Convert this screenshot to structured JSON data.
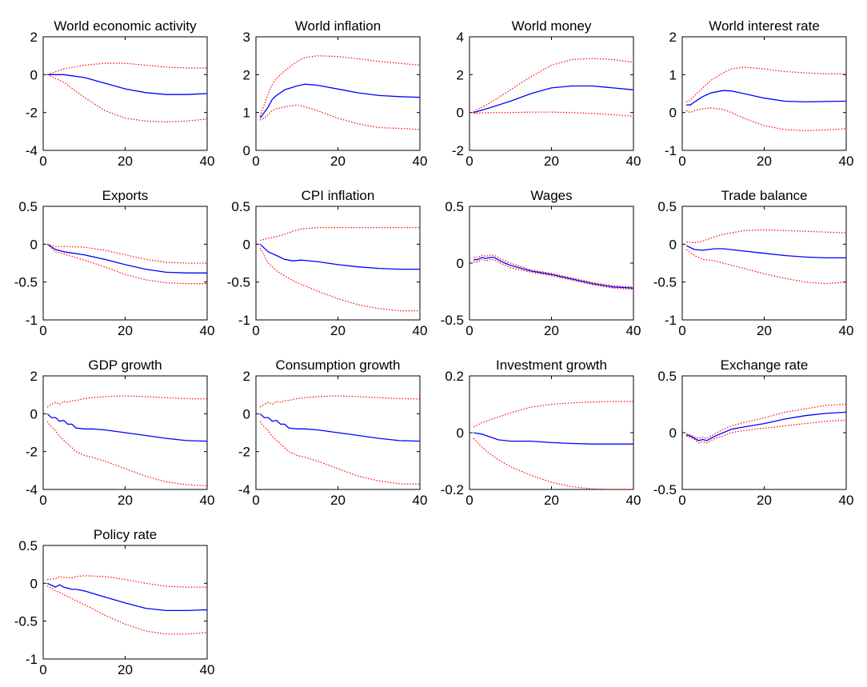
{
  "figure": {
    "colors": {
      "median": "#0000ff",
      "band": "#ff0000",
      "axis": "#000000",
      "background": "#ffffff"
    },
    "x_ticks": [
      0,
      20,
      40
    ],
    "xlim": [
      0,
      40
    ]
  },
  "chart_data": [
    {
      "type": "line",
      "title": "World economic activity",
      "ylim": [
        -4,
        2
      ],
      "yticks": [
        -4,
        -2,
        0,
        2
      ],
      "xlabel": "",
      "ylabel": "",
      "grid": false,
      "x": [
        1,
        5,
        10,
        15,
        20,
        25,
        30,
        35,
        40
      ],
      "series": [
        {
          "role": "median",
          "style": "solid",
          "values": [
            0,
            0,
            -0.15,
            -0.45,
            -0.75,
            -0.95,
            -1.05,
            -1.05,
            -1.0
          ]
        },
        {
          "role": "upper",
          "style": "dotted",
          "values": [
            0,
            0.3,
            0.5,
            0.6,
            0.6,
            0.5,
            0.4,
            0.35,
            0.35
          ]
        },
        {
          "role": "lower",
          "style": "dotted",
          "values": [
            0,
            -0.4,
            -1.2,
            -1.9,
            -2.3,
            -2.45,
            -2.5,
            -2.45,
            -2.35
          ]
        }
      ]
    },
    {
      "type": "line",
      "title": "World inflation",
      "ylim": [
        0,
        3
      ],
      "yticks": [
        0,
        1,
        2,
        3
      ],
      "xlabel": "",
      "ylabel": "",
      "grid": false,
      "x": [
        1,
        2,
        3,
        4,
        5,
        7,
        10,
        12,
        15,
        20,
        25,
        30,
        35,
        40
      ],
      "series": [
        {
          "role": "median",
          "style": "solid",
          "values": [
            0.85,
            1.0,
            1.15,
            1.35,
            1.45,
            1.6,
            1.7,
            1.75,
            1.72,
            1.62,
            1.52,
            1.45,
            1.42,
            1.4
          ]
        },
        {
          "role": "upper",
          "style": "dotted",
          "values": [
            0.9,
            1.2,
            1.5,
            1.75,
            1.9,
            2.1,
            2.35,
            2.45,
            2.5,
            2.48,
            2.42,
            2.35,
            2.3,
            2.25
          ]
        },
        {
          "role": "lower",
          "style": "dotted",
          "values": [
            0.8,
            0.85,
            0.95,
            1.05,
            1.1,
            1.15,
            1.2,
            1.15,
            1.05,
            0.85,
            0.7,
            0.6,
            0.58,
            0.55
          ]
        }
      ]
    },
    {
      "type": "line",
      "title": "World money",
      "ylim": [
        -2,
        4
      ],
      "yticks": [
        -2,
        0,
        2,
        4
      ],
      "xlabel": "",
      "ylabel": "",
      "grid": false,
      "x": [
        1,
        5,
        10,
        15,
        20,
        25,
        30,
        35,
        40
      ],
      "series": [
        {
          "role": "median",
          "style": "solid",
          "values": [
            0,
            0.25,
            0.6,
            1.0,
            1.3,
            1.4,
            1.4,
            1.3,
            1.2
          ]
        },
        {
          "role": "upper",
          "style": "dotted",
          "values": [
            0.05,
            0.5,
            1.2,
            1.9,
            2.5,
            2.8,
            2.85,
            2.8,
            2.65
          ]
        },
        {
          "role": "lower",
          "style": "dotted",
          "values": [
            -0.05,
            0,
            0,
            0.02,
            0.02,
            0,
            -0.05,
            -0.12,
            -0.2
          ]
        }
      ]
    },
    {
      "type": "line",
      "title": "World interest rate",
      "ylim": [
        -1,
        2
      ],
      "yticks": [
        -1,
        0,
        1,
        2
      ],
      "xlabel": "",
      "ylabel": "",
      "grid": false,
      "x": [
        1,
        2,
        3,
        5,
        7,
        10,
        12,
        15,
        20,
        25,
        30,
        35,
        40
      ],
      "series": [
        {
          "role": "median",
          "style": "solid",
          "values": [
            0.2,
            0.2,
            0.28,
            0.42,
            0.52,
            0.58,
            0.57,
            0.5,
            0.38,
            0.3,
            0.28,
            0.29,
            0.3
          ]
        },
        {
          "role": "upper",
          "style": "dotted",
          "values": [
            0.28,
            0.32,
            0.45,
            0.65,
            0.85,
            1.05,
            1.15,
            1.2,
            1.15,
            1.08,
            1.05,
            1.02,
            1.02
          ]
        },
        {
          "role": "lower",
          "style": "dotted",
          "values": [
            0.05,
            0.0,
            0.05,
            0.1,
            0.12,
            0.08,
            0.0,
            -0.15,
            -0.35,
            -0.45,
            -0.48,
            -0.46,
            -0.43
          ]
        }
      ]
    },
    {
      "type": "line",
      "title": "Exports",
      "ylim": [
        -1,
        0.5
      ],
      "yticks": [
        -1,
        -0.5,
        0,
        0.5
      ],
      "xlabel": "",
      "ylabel": "",
      "grid": false,
      "x": [
        1,
        3,
        5,
        10,
        15,
        20,
        25,
        30,
        35,
        40
      ],
      "series": [
        {
          "role": "median",
          "style": "solid",
          "values": [
            0,
            -0.07,
            -0.1,
            -0.14,
            -0.2,
            -0.27,
            -0.33,
            -0.37,
            -0.38,
            -0.38
          ]
        },
        {
          "role": "upper",
          "style": "dotted",
          "values": [
            0,
            -0.03,
            -0.03,
            -0.04,
            -0.08,
            -0.14,
            -0.2,
            -0.24,
            -0.25,
            -0.25
          ]
        },
        {
          "role": "lower",
          "style": "dotted",
          "values": [
            0,
            -0.1,
            -0.13,
            -0.21,
            -0.3,
            -0.4,
            -0.47,
            -0.51,
            -0.52,
            -0.52
          ]
        }
      ]
    },
    {
      "type": "line",
      "title": "CPI inflation",
      "ylim": [
        -1,
        0.5
      ],
      "yticks": [
        -1,
        -0.5,
        0,
        0.5
      ],
      "xlabel": "",
      "ylabel": "",
      "grid": false,
      "x": [
        1,
        3,
        5,
        7,
        9,
        11,
        15,
        20,
        25,
        30,
        35,
        40
      ],
      "series": [
        {
          "role": "median",
          "style": "solid",
          "values": [
            0,
            -0.1,
            -0.15,
            -0.2,
            -0.22,
            -0.21,
            -0.23,
            -0.27,
            -0.3,
            -0.32,
            -0.33,
            -0.33
          ]
        },
        {
          "role": "upper",
          "style": "dotted",
          "values": [
            0.05,
            0.08,
            0.1,
            0.13,
            0.17,
            0.2,
            0.22,
            0.22,
            0.22,
            0.22,
            0.22,
            0.22
          ]
        },
        {
          "role": "lower",
          "style": "dotted",
          "values": [
            -0.05,
            -0.25,
            -0.35,
            -0.42,
            -0.48,
            -0.53,
            -0.62,
            -0.72,
            -0.8,
            -0.85,
            -0.88,
            -0.88
          ]
        }
      ]
    },
    {
      "type": "line",
      "title": "Wages",
      "ylim": [
        -0.5,
        0.5
      ],
      "yticks": [
        -0.5,
        0,
        0.5
      ],
      "xlabel": "",
      "ylabel": "",
      "grid": false,
      "x": [
        1,
        2,
        3,
        4,
        5,
        6,
        7,
        8,
        10,
        15,
        20,
        25,
        30,
        35,
        40
      ],
      "series": [
        {
          "role": "median",
          "style": "solid",
          "values": [
            0.03,
            0.03,
            0.05,
            0.04,
            0.05,
            0.05,
            0.03,
            0.01,
            -0.02,
            -0.07,
            -0.1,
            -0.14,
            -0.18,
            -0.21,
            -0.22
          ]
        },
        {
          "role": "upper",
          "style": "dotted",
          "values": [
            0.05,
            0.05,
            0.07,
            0.06,
            0.07,
            0.07,
            0.05,
            0.03,
            0.0,
            -0.06,
            -0.09,
            -0.13,
            -0.17,
            -0.2,
            -0.21
          ]
        },
        {
          "role": "lower",
          "style": "dotted",
          "values": [
            0.01,
            0.01,
            0.03,
            0.02,
            0.03,
            0.03,
            0.01,
            -0.01,
            -0.04,
            -0.08,
            -0.11,
            -0.15,
            -0.19,
            -0.22,
            -0.23
          ]
        }
      ]
    },
    {
      "type": "line",
      "title": "Trade balance",
      "ylim": [
        -1,
        0.5
      ],
      "yticks": [
        -1,
        -0.5,
        0,
        0.5
      ],
      "xlabel": "",
      "ylabel": "",
      "grid": false,
      "x": [
        1,
        3,
        5,
        8,
        10,
        15,
        20,
        25,
        30,
        35,
        40
      ],
      "series": [
        {
          "role": "median",
          "style": "solid",
          "values": [
            -0.02,
            -0.07,
            -0.08,
            -0.06,
            -0.06,
            -0.09,
            -0.12,
            -0.15,
            -0.17,
            -0.18,
            -0.18
          ]
        },
        {
          "role": "upper",
          "style": "dotted",
          "values": [
            0.03,
            0.02,
            0.04,
            0.1,
            0.13,
            0.18,
            0.19,
            0.18,
            0.17,
            0.16,
            0.15
          ]
        },
        {
          "role": "lower",
          "style": "dotted",
          "values": [
            -0.07,
            -0.15,
            -0.2,
            -0.22,
            -0.25,
            -0.32,
            -0.39,
            -0.45,
            -0.5,
            -0.52,
            -0.5
          ]
        }
      ]
    },
    {
      "type": "line",
      "title": "GDP growth",
      "ylim": [
        -4,
        2
      ],
      "yticks": [
        -4,
        -2,
        0,
        2
      ],
      "xlabel": "",
      "ylabel": "",
      "grid": false,
      "x": [
        1,
        2,
        3,
        4,
        5,
        6,
        7,
        8,
        10,
        12,
        15,
        20,
        25,
        30,
        35,
        40
      ],
      "series": [
        {
          "role": "median",
          "style": "solid",
          "values": [
            0,
            -0.2,
            -0.2,
            -0.4,
            -0.35,
            -0.55,
            -0.55,
            -0.75,
            -0.8,
            -0.8,
            -0.85,
            -1.0,
            -1.15,
            -1.3,
            -1.42,
            -1.45
          ]
        },
        {
          "role": "upper",
          "style": "dotted",
          "values": [
            0.35,
            0.5,
            0.6,
            0.5,
            0.65,
            0.6,
            0.7,
            0.7,
            0.8,
            0.85,
            0.9,
            0.95,
            0.9,
            0.85,
            0.8,
            0.78
          ]
        },
        {
          "role": "lower",
          "style": "dotted",
          "values": [
            -0.4,
            -0.7,
            -0.9,
            -1.2,
            -1.4,
            -1.6,
            -1.8,
            -2.0,
            -2.2,
            -2.3,
            -2.5,
            -2.9,
            -3.3,
            -3.6,
            -3.75,
            -3.8
          ]
        }
      ]
    },
    {
      "type": "line",
      "title": "Consumption growth",
      "ylim": [
        -4,
        2
      ],
      "yticks": [
        -4,
        -2,
        0,
        2
      ],
      "xlabel": "",
      "ylabel": "",
      "grid": false,
      "x": [
        1,
        2,
        3,
        4,
        5,
        6,
        7,
        8,
        10,
        12,
        15,
        20,
        25,
        30,
        35,
        40
      ],
      "series": [
        {
          "role": "median",
          "style": "solid",
          "values": [
            0,
            -0.2,
            -0.2,
            -0.4,
            -0.35,
            -0.55,
            -0.55,
            -0.75,
            -0.8,
            -0.8,
            -0.85,
            -1.0,
            -1.15,
            -1.3,
            -1.42,
            -1.45
          ]
        },
        {
          "role": "upper",
          "style": "dotted",
          "values": [
            0.35,
            0.5,
            0.6,
            0.5,
            0.65,
            0.6,
            0.7,
            0.7,
            0.8,
            0.85,
            0.9,
            0.95,
            0.9,
            0.85,
            0.8,
            0.78
          ]
        },
        {
          "role": "lower",
          "style": "dotted",
          "values": [
            -0.4,
            -0.7,
            -0.9,
            -1.2,
            -1.4,
            -1.6,
            -1.8,
            -2.0,
            -2.2,
            -2.3,
            -2.5,
            -2.9,
            -3.3,
            -3.55,
            -3.7,
            -3.72
          ]
        }
      ]
    },
    {
      "type": "line",
      "title": "Investment growth",
      "ylim": [
        -0.2,
        0.2
      ],
      "yticks": [
        -0.2,
        0,
        0.2
      ],
      "xlabel": "",
      "ylabel": "",
      "grid": false,
      "x": [
        1,
        3,
        5,
        7,
        10,
        15,
        20,
        25,
        30,
        35,
        40
      ],
      "series": [
        {
          "role": "median",
          "style": "solid",
          "values": [
            0,
            -0.005,
            -0.015,
            -0.025,
            -0.03,
            -0.03,
            -0.035,
            -0.038,
            -0.04,
            -0.04,
            -0.04
          ]
        },
        {
          "role": "upper",
          "style": "dotted",
          "values": [
            0.02,
            0.035,
            0.045,
            0.055,
            0.07,
            0.09,
            0.1,
            0.105,
            0.108,
            0.11,
            0.11
          ]
        },
        {
          "role": "lower",
          "style": "dotted",
          "values": [
            -0.02,
            -0.05,
            -0.075,
            -0.095,
            -0.12,
            -0.15,
            -0.175,
            -0.19,
            -0.198,
            -0.2,
            -0.2
          ]
        }
      ]
    },
    {
      "type": "line",
      "title": "Exchange rate",
      "ylim": [
        -0.5,
        0.5
      ],
      "yticks": [
        -0.5,
        0,
        0.5
      ],
      "xlabel": "",
      "ylabel": "",
      "grid": false,
      "x": [
        1,
        2,
        3,
        4,
        5,
        6,
        7,
        8,
        10,
        12,
        15,
        20,
        25,
        30,
        35,
        40
      ],
      "series": [
        {
          "role": "median",
          "style": "solid",
          "values": [
            -0.02,
            -0.03,
            -0.05,
            -0.07,
            -0.06,
            -0.07,
            -0.05,
            -0.03,
            0.0,
            0.03,
            0.05,
            0.08,
            0.12,
            0.15,
            0.17,
            0.18
          ]
        },
        {
          "role": "upper",
          "style": "dotted",
          "values": [
            -0.01,
            -0.02,
            -0.04,
            -0.05,
            -0.04,
            -0.05,
            -0.03,
            -0.01,
            0.03,
            0.06,
            0.09,
            0.13,
            0.18,
            0.21,
            0.24,
            0.25
          ]
        },
        {
          "role": "lower",
          "style": "dotted",
          "values": [
            -0.03,
            -0.04,
            -0.06,
            -0.09,
            -0.08,
            -0.09,
            -0.07,
            -0.05,
            -0.03,
            0.0,
            0.02,
            0.04,
            0.06,
            0.08,
            0.1,
            0.11
          ]
        }
      ]
    },
    {
      "type": "line",
      "title": "Policy rate",
      "ylim": [
        -1,
        0.5
      ],
      "yticks": [
        -1,
        -0.5,
        0,
        0.5
      ],
      "xlabel": "",
      "ylabel": "",
      "grid": false,
      "x": [
        1,
        3,
        4,
        5,
        7,
        8,
        10,
        15,
        20,
        25,
        30,
        35,
        40
      ],
      "series": [
        {
          "role": "median",
          "style": "solid",
          "values": [
            0,
            -0.05,
            -0.02,
            -0.05,
            -0.08,
            -0.08,
            -0.1,
            -0.18,
            -0.26,
            -0.33,
            -0.36,
            -0.36,
            -0.35
          ]
        },
        {
          "role": "upper",
          "style": "dotted",
          "values": [
            0.05,
            0.06,
            0.09,
            0.08,
            0.07,
            0.09,
            0.1,
            0.09,
            0.05,
            0.0,
            -0.04,
            -0.05,
            -0.05
          ]
        },
        {
          "role": "lower",
          "style": "dotted",
          "values": [
            -0.03,
            -0.1,
            -0.12,
            -0.15,
            -0.2,
            -0.23,
            -0.28,
            -0.42,
            -0.54,
            -0.63,
            -0.67,
            -0.67,
            -0.65
          ]
        }
      ]
    }
  ]
}
